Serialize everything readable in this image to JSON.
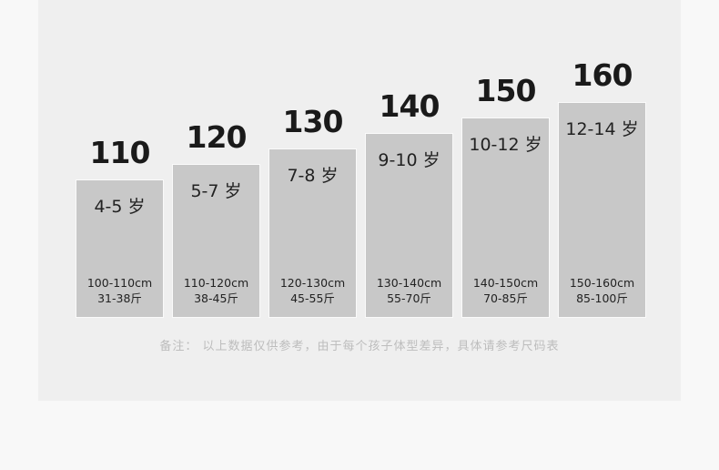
{
  "chart_data": {
    "type": "bar",
    "title": "",
    "categories": [
      "110",
      "120",
      "130",
      "140",
      "150",
      "160"
    ],
    "values": [
      110,
      120,
      130,
      140,
      150,
      160
    ],
    "ages": [
      "4-5 岁",
      "5-7 岁",
      "7-8 岁",
      "9-10 岁",
      "10-12 岁",
      "12-14 岁"
    ],
    "heights": [
      "100-110cm",
      "110-120cm",
      "120-130cm",
      "130-140cm",
      "140-150cm",
      "150-160cm"
    ],
    "weights": [
      "31-38斤",
      "38-45斤",
      "45-55斤",
      "55-70斤",
      "70-85斤",
      "85-100斤"
    ],
    "bar_color": "#c8c8c8",
    "grid": false
  },
  "note": "备注： 以上数据仅供参考，由于每个孩子体型差异，具体请参考尺码表"
}
